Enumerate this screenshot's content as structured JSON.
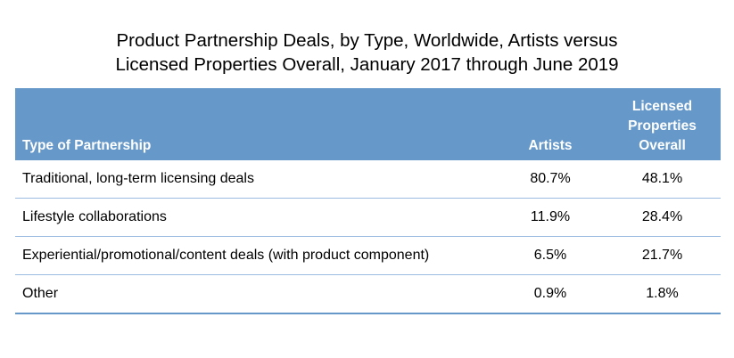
{
  "chart_data": {
    "type": "table",
    "title": [
      "Product Partnership Deals, by Type, Worldwide, Artists versus",
      "Licensed Properties Overall, January 2017 through June 2019"
    ],
    "columns": {
      "type": "Type of Partnership",
      "artists": "Artists",
      "licensed": [
        "Licensed",
        "Properties",
        "Overall"
      ]
    },
    "rows": [
      {
        "type": "Traditional, long-term licensing deals",
        "artists": "80.7%",
        "licensed": "48.1%"
      },
      {
        "type": "Lifestyle collaborations",
        "artists": "11.9%",
        "licensed": "28.4%"
      },
      {
        "type": "Experiential/promotional/content deals (with product component)",
        "artists": "6.5%",
        "licensed": "21.7%"
      },
      {
        "type": "Other",
        "artists": "0.9%",
        "licensed": "1.8%"
      }
    ],
    "header_color": "#6699c9",
    "rule_color": "#9bbbe0"
  }
}
